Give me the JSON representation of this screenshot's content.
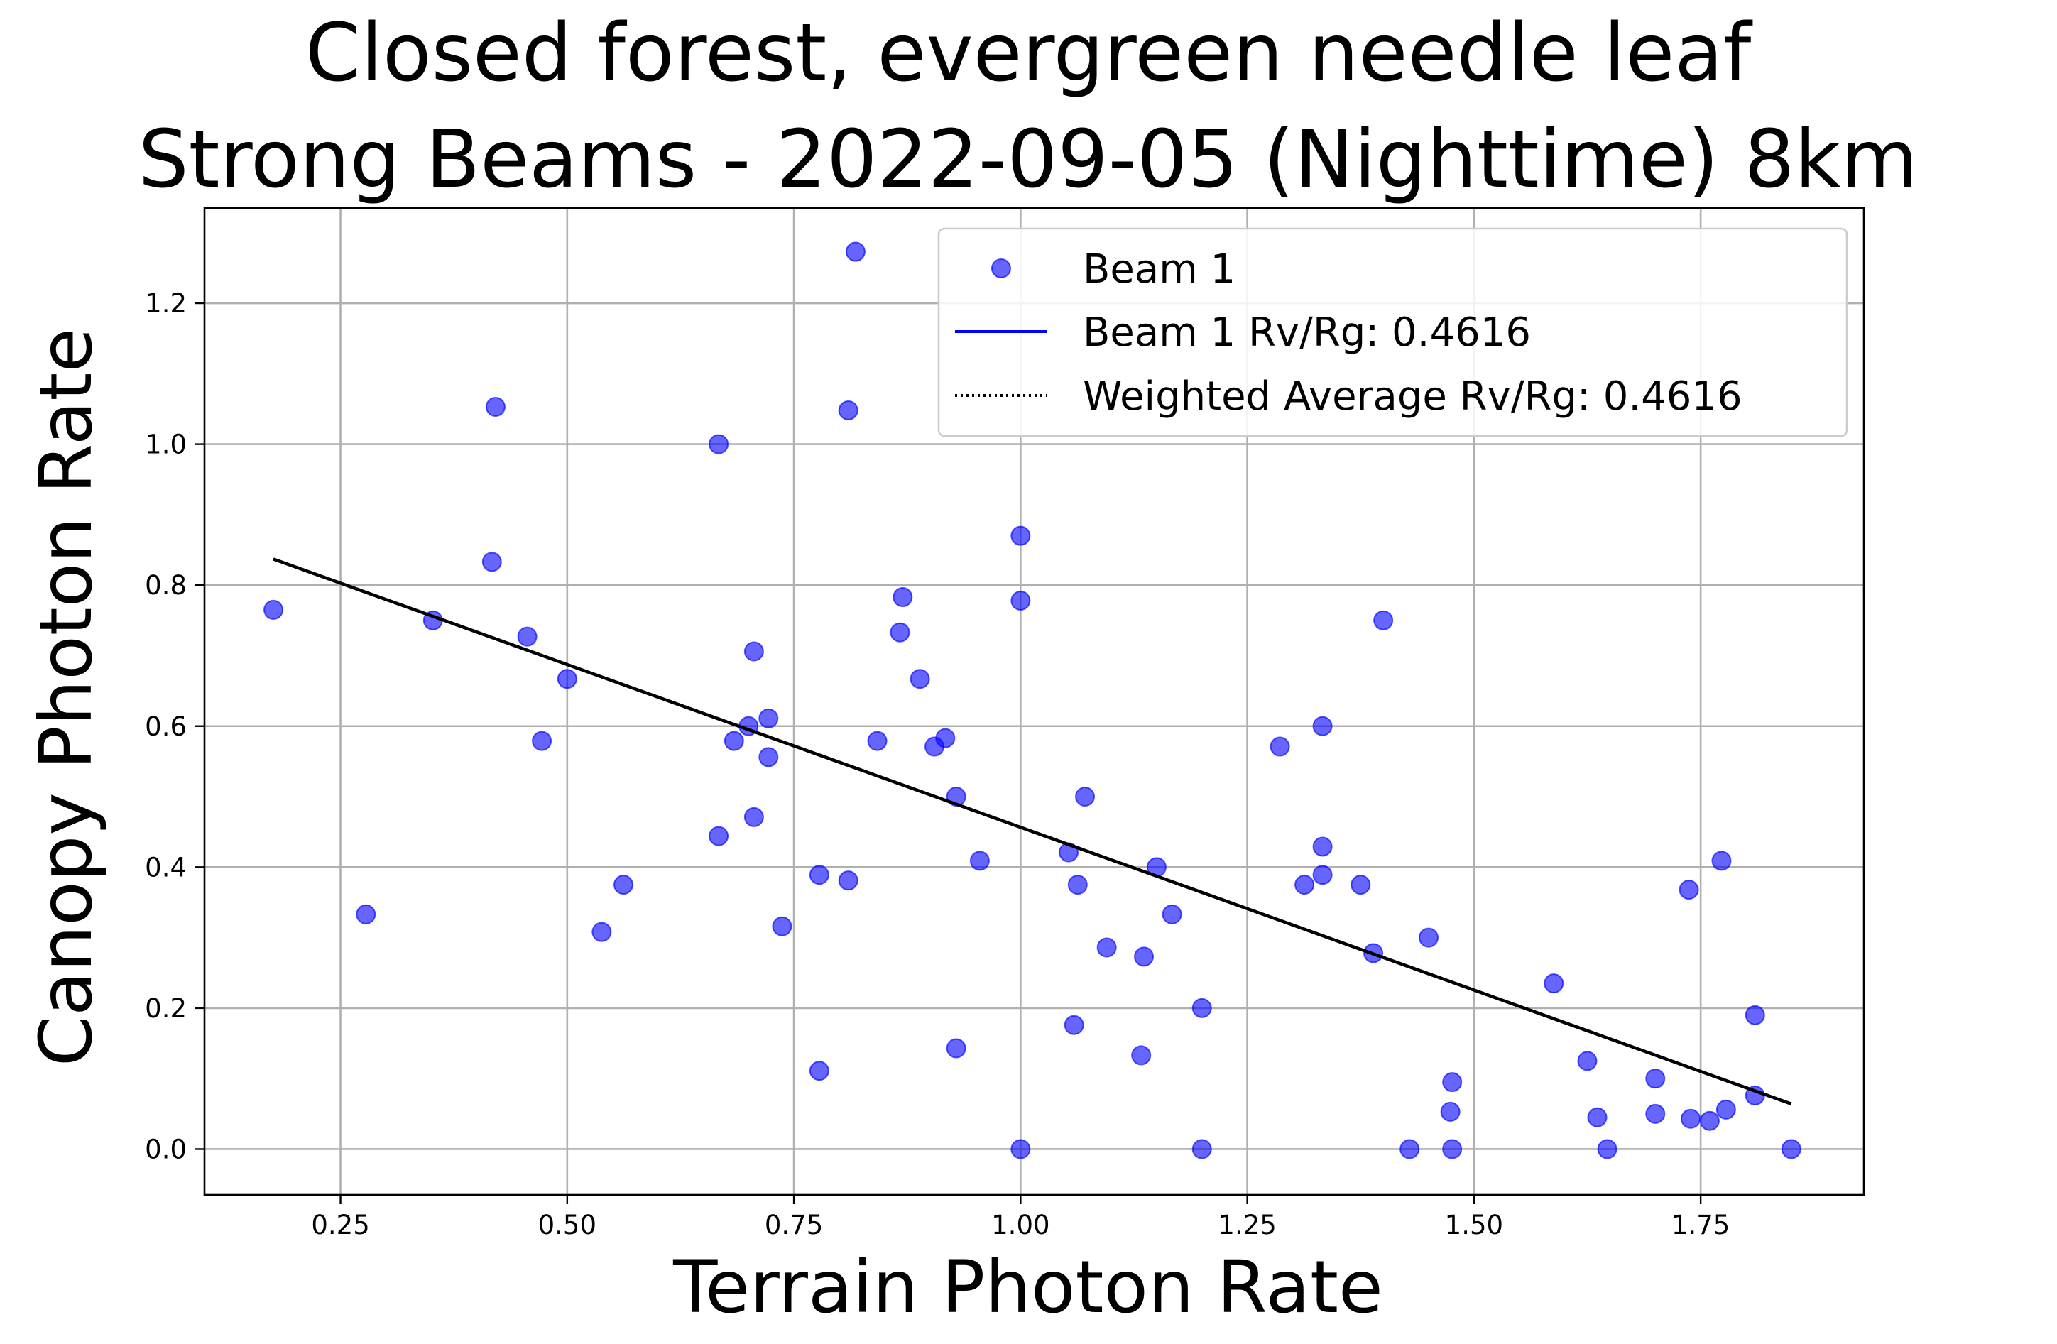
{
  "chart_data": {
    "type": "scatter",
    "title_lines": [
      "Closed forest, evergreen needle leaf",
      "Strong Beams - 2022-09-05 (Nighttime) 8km"
    ],
    "xlabel": "Terrain Photon Rate",
    "ylabel": "Canopy Photon Rate",
    "xlim": [
      0.1,
      1.93
    ],
    "ylim": [
      -0.065,
      1.335
    ],
    "xticks": [
      0.25,
      0.5,
      0.75,
      1.0,
      1.25,
      1.5,
      1.75
    ],
    "xtick_labels": [
      "0.25",
      "0.50",
      "0.75",
      "1.00",
      "1.25",
      "1.50",
      "1.75"
    ],
    "yticks": [
      0.0,
      0.2,
      0.4,
      0.6,
      0.8,
      1.0,
      1.2
    ],
    "ytick_labels": [
      "0.0",
      "0.2",
      "0.4",
      "0.6",
      "0.8",
      "1.0",
      "1.2"
    ],
    "grid": true,
    "legend_position": "upper-right",
    "legend": [
      {
        "label": "Beam 1",
        "kind": "marker",
        "color": "#0000ff"
      },
      {
        "label": "Beam 1 Rv/Rg: 0.4616",
        "kind": "line",
        "color": "#0000ff"
      },
      {
        "label": "Weighted Average Rv/Rg: 0.4616",
        "kind": "dotted",
        "color": "#000000"
      }
    ],
    "series": [
      {
        "name": "Beam 1",
        "kind": "scatter",
        "color": "#0000ff",
        "points": [
          [
            0.176,
            0.765
          ],
          [
            0.278,
            0.333
          ],
          [
            0.352,
            0.75
          ],
          [
            0.417,
            0.833
          ],
          [
            0.421,
            1.053
          ],
          [
            0.456,
            0.727
          ],
          [
            0.472,
            0.579
          ],
          [
            0.5,
            0.667
          ],
          [
            0.538,
            0.308
          ],
          [
            0.562,
            0.375
          ],
          [
            0.667,
            1.0
          ],
          [
            0.667,
            0.444
          ],
          [
            0.684,
            0.579
          ],
          [
            0.7,
            0.6
          ],
          [
            0.706,
            0.706
          ],
          [
            0.706,
            0.471
          ],
          [
            0.722,
            0.611
          ],
          [
            0.722,
            0.556
          ],
          [
            0.737,
            0.316
          ],
          [
            0.778,
            0.389
          ],
          [
            0.778,
            0.111
          ],
          [
            0.81,
            1.048
          ],
          [
            0.81,
            0.381
          ],
          [
            0.818,
            1.273
          ],
          [
            0.842,
            0.579
          ],
          [
            0.867,
            0.733
          ],
          [
            0.87,
            0.783
          ],
          [
            0.889,
            0.667
          ],
          [
            0.905,
            0.571
          ],
          [
            0.917,
            0.583
          ],
          [
            0.929,
            0.5
          ],
          [
            0.929,
            0.143
          ],
          [
            0.955,
            0.409
          ],
          [
            1.0,
            0.87
          ],
          [
            1.0,
            0.778
          ],
          [
            1.0,
            0.0
          ],
          [
            1.053,
            0.421
          ],
          [
            1.059,
            0.176
          ],
          [
            1.063,
            0.375
          ],
          [
            1.071,
            0.5
          ],
          [
            1.095,
            0.286
          ],
          [
            1.133,
            0.133
          ],
          [
            1.136,
            0.273
          ],
          [
            1.15,
            0.4
          ],
          [
            1.167,
            0.333
          ],
          [
            1.2,
            0.2
          ],
          [
            1.2,
            0.0
          ],
          [
            1.286,
            0.571
          ],
          [
            1.313,
            0.375
          ],
          [
            1.333,
            0.6
          ],
          [
            1.333,
            0.429
          ],
          [
            1.333,
            0.389
          ],
          [
            1.375,
            0.375
          ],
          [
            1.389,
            0.278
          ],
          [
            1.4,
            0.75
          ],
          [
            1.429,
            0.0
          ],
          [
            1.45,
            0.3
          ],
          [
            1.474,
            0.053
          ],
          [
            1.476,
            0.095
          ],
          [
            1.476,
            0.0
          ],
          [
            1.588,
            0.235
          ],
          [
            1.625,
            0.125
          ],
          [
            1.636,
            0.045
          ],
          [
            1.647,
            0.0
          ],
          [
            1.7,
            0.1
          ],
          [
            1.7,
            0.05
          ],
          [
            1.737,
            0.368
          ],
          [
            1.739,
            0.043
          ],
          [
            1.76,
            0.04
          ],
          [
            1.773,
            0.409
          ],
          [
            1.778,
            0.056
          ],
          [
            1.81,
            0.19
          ],
          [
            1.81,
            0.076
          ],
          [
            1.85,
            0.0
          ]
        ]
      },
      {
        "name": "Beam 1 Rv/Rg: 0.4616",
        "kind": "line",
        "color": "#0000ff",
        "x": [
          0.176,
          1.85
        ],
        "y": [
          0.837,
          0.064
        ]
      },
      {
        "name": "Weighted Average Rv/Rg: 0.4616",
        "kind": "dotted",
        "color": "#000000",
        "x": [
          0.176,
          1.85
        ],
        "y": [
          0.837,
          0.064
        ]
      }
    ],
    "overlay_line": {
      "color": "#000000",
      "x": [
        0.176,
        1.85
      ],
      "y": [
        0.837,
        0.064
      ]
    }
  }
}
